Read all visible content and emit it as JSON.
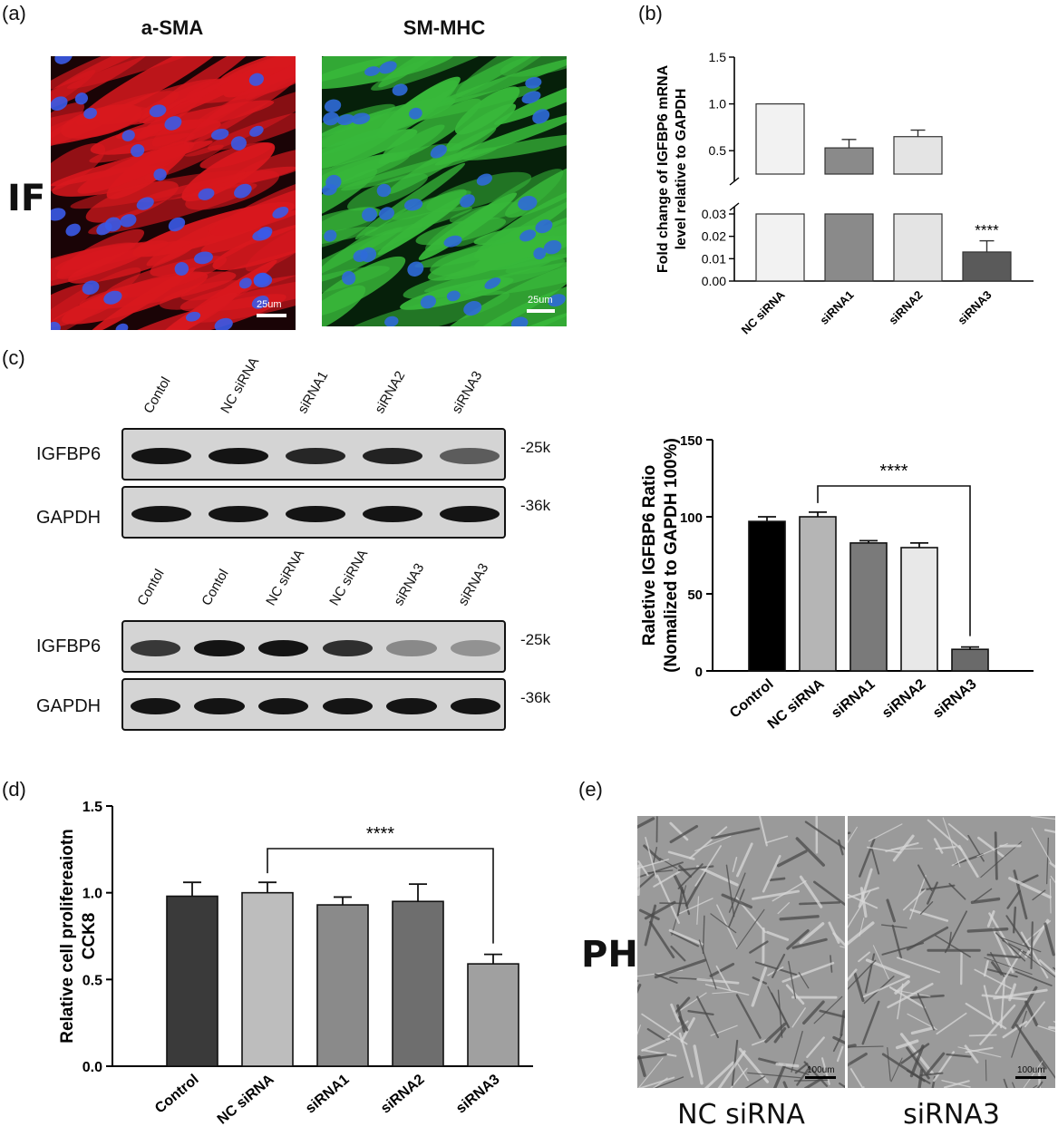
{
  "panels": {
    "a": "(a)",
    "b": "(b)",
    "c": "(c)",
    "d": "(d)",
    "e": "(e)"
  },
  "panel_a": {
    "row_label": "IF",
    "images": [
      {
        "title": "a-SMA",
        "scale_bar": "25um",
        "stain_color": "#d8181e",
        "nucleus_color": "#3a5ae8"
      },
      {
        "title": "SM-MHC",
        "scale_bar": "25um",
        "stain_color": "#38b83a",
        "nucleus_color": "#2f6ad8"
      }
    ]
  },
  "panel_c_blots": {
    "blot1": {
      "lanes": [
        "Contol",
        "NC siRNA",
        "siRNA1",
        "siRNA2",
        "siRNA3"
      ],
      "rows": [
        {
          "label": "IGFBP6",
          "kda": "-25k",
          "intensity": [
            1.0,
            1.0,
            0.9,
            0.92,
            0.6
          ]
        },
        {
          "label": "GAPDH",
          "kda": "-36k",
          "intensity": [
            1.0,
            1.0,
            1.0,
            1.0,
            1.0
          ]
        }
      ]
    },
    "blot2": {
      "lanes": [
        "Contol",
        "Contol",
        "NC siRNA",
        "NC siRNA",
        "siRNA3",
        "siRNA3"
      ],
      "rows": [
        {
          "label": "IGFBP6",
          "kda": "-25k",
          "intensity": [
            0.8,
            1.0,
            1.0,
            0.85,
            0.35,
            0.3
          ]
        },
        {
          "label": "GAPDH",
          "kda": "-36k",
          "intensity": [
            1.0,
            1.0,
            1.0,
            1.0,
            1.0,
            1.0
          ]
        }
      ]
    }
  },
  "panel_e": {
    "row_label": "PH",
    "captions": [
      "NC siRNA",
      "siRNA3"
    ],
    "scale_bars": [
      "100um",
      "100um"
    ]
  },
  "chart_data": [
    {
      "id": "b",
      "type": "bar",
      "categories": [
        "NC siRNA",
        "siRNA1",
        "siRNA2",
        "siRNA3"
      ],
      "values": [
        1.0,
        0.53,
        0.65,
        0.013
      ],
      "errors": [
        0,
        0.09,
        0.07,
        0.005
      ],
      "ylabel": "Fold change of IGFBP6 mRNA level relative to GAPDH",
      "axis_break": true,
      "lower_ticks": [
        "0.00",
        "0.01",
        "0.02",
        "0.03"
      ],
      "upper_ticks": [
        "0.5",
        "1.0",
        "1.5"
      ],
      "significance": [
        {
          "category": "siRNA3",
          "label": "****"
        }
      ],
      "colors": [
        "#f2f2f2",
        "#8a8a8a",
        "#e4e4e4",
        "#5a5a5a"
      ]
    },
    {
      "id": "c",
      "type": "bar",
      "categories": [
        "Control",
        "NC siRNA",
        "siRNA1",
        "siRNA2",
        "siRNA3"
      ],
      "values": [
        97,
        100,
        83,
        80,
        14
      ],
      "errors": [
        3,
        3,
        1.5,
        3,
        1.5
      ],
      "ylabel_lines": [
        "Raletive IGFBP6 Ratio",
        "(Nomalized to GAPDH 100%)"
      ],
      "ylim": [
        0,
        150
      ],
      "yticks": [
        "0",
        "50",
        "100",
        "150"
      ],
      "comparison": {
        "from": "NC siRNA",
        "to": "siRNA3",
        "label": "****"
      },
      "colors": [
        "#000000",
        "#b5b5b5",
        "#7a7a7a",
        "#e8e8e8",
        "#6a6a6a"
      ]
    },
    {
      "id": "d",
      "type": "bar",
      "categories": [
        "Control",
        "NC siRNA",
        "siRNA1",
        "siRNA2",
        "siRNA3"
      ],
      "values": [
        0.98,
        1.0,
        0.93,
        0.95,
        0.59
      ],
      "errors": [
        0.08,
        0.06,
        0.045,
        0.1,
        0.055
      ],
      "ylabel_lines": [
        "Relative cell prolifereaiotn",
        "CCK8"
      ],
      "ylim": [
        0,
        1.5
      ],
      "yticks": [
        "0.0",
        "0.5",
        "1.0",
        "1.5"
      ],
      "comparison": {
        "from": "NC siRNA",
        "to": "siRNA3",
        "label": "****"
      },
      "colors": [
        "#3a3a3a",
        "#bdbdbd",
        "#8a8a8a",
        "#6e6e6e",
        "#a0a0a0"
      ]
    }
  ]
}
